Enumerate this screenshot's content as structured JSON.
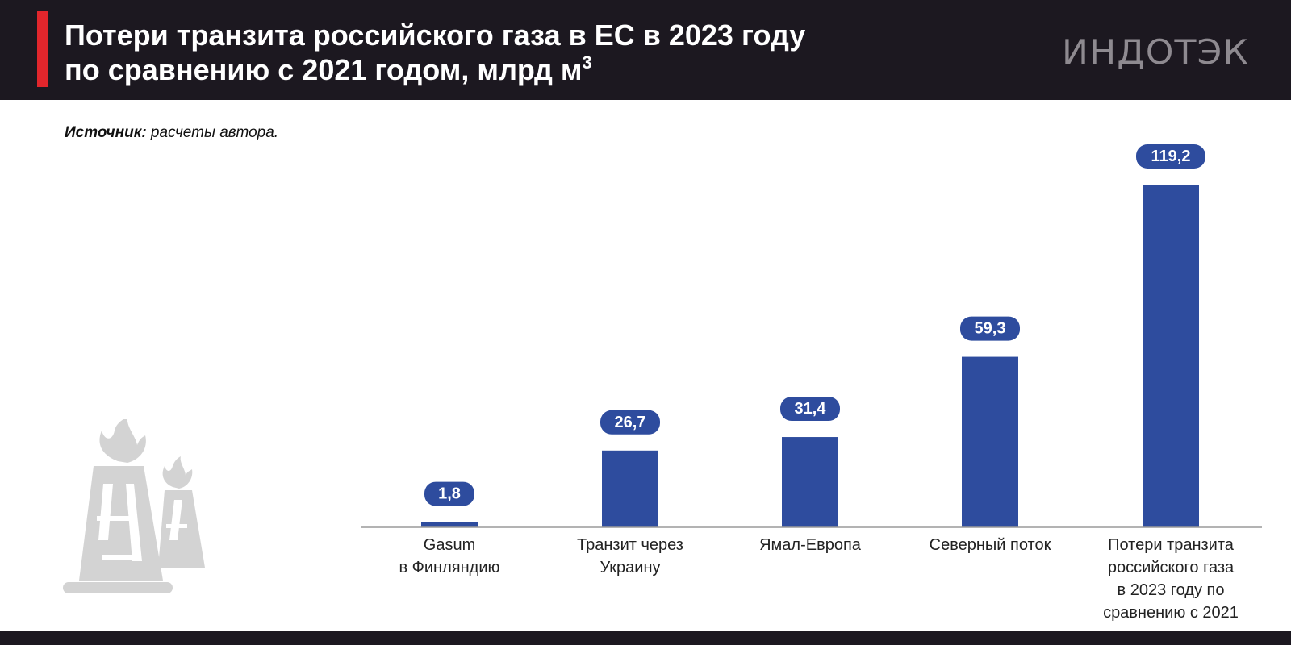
{
  "header": {
    "title_line1": "Потери транзита российского газа в ЕС в 2023 году",
    "title_line2": "по сравнению с 2021 годом, млрд м",
    "title_sup": "3",
    "logo": "ИНДОТЭК"
  },
  "source": {
    "label": "Источник:",
    "text": " расчеты автора."
  },
  "colors": {
    "bar": "#2e4c9e",
    "header_bg": "#1c1820",
    "accent": "#e1262c",
    "deco": "#d3d3d3"
  },
  "decoration_icon": "gas-towers-icon",
  "chart_data": {
    "type": "bar",
    "categories": [
      [
        "Gasum",
        "в Финляндию"
      ],
      [
        "Транзит через",
        "Украину"
      ],
      [
        "Ямал-Европа"
      ],
      [
        "Северный поток"
      ],
      [
        "Потери транзита",
        "российского газа",
        "в 2023 году по",
        "сравнению с 2021"
      ]
    ],
    "values": [
      1.8,
      26.7,
      31.4,
      59.3,
      119.2
    ],
    "value_labels": [
      "1,8",
      "26,7",
      "31,4",
      "59,3",
      "119,2"
    ],
    "ylim": [
      0,
      119.2
    ],
    "grid": false,
    "legend": "none"
  }
}
